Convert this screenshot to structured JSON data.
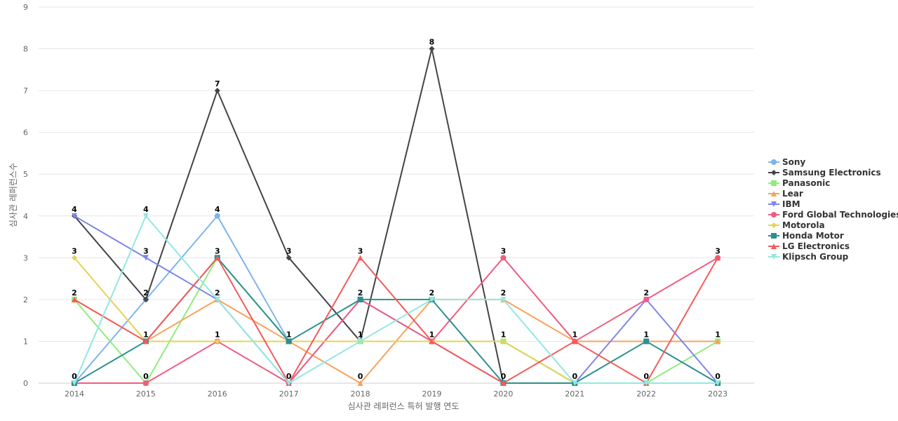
{
  "chart_data": {
    "type": "line",
    "xlabel": "심사관 레퍼런스 특허 발행 연도",
    "ylabel": "심사관 레퍼런스수",
    "ylim": [
      0,
      9
    ],
    "yticks": [
      0,
      1,
      2,
      3,
      4,
      5,
      6,
      7,
      8,
      9
    ],
    "grid": "horizontal",
    "legend_position": "right",
    "categories": [
      "2014",
      "2015",
      "2016",
      "2017",
      "2018",
      "2019",
      "2020",
      "2021",
      "2022",
      "2023"
    ],
    "series": [
      {
        "name": "Sony",
        "color": "#7cb5ec",
        "marker": "circle",
        "values": [
          0,
          2,
          4,
          1,
          1,
          1,
          1,
          0,
          0,
          0
        ]
      },
      {
        "name": "Samsung Electronics",
        "color": "#434348",
        "marker": "diamond",
        "values": [
          4,
          2,
          7,
          3,
          1,
          8,
          0,
          0,
          0,
          0
        ]
      },
      {
        "name": "Panasonic",
        "color": "#90ed7d",
        "marker": "square",
        "values": [
          2,
          0,
          3,
          1,
          1,
          1,
          1,
          0,
          0,
          1
        ]
      },
      {
        "name": "Lear",
        "color": "#f7a35c",
        "marker": "triangle",
        "values": [
          2,
          1,
          2,
          1,
          0,
          2,
          2,
          1,
          1,
          1
        ]
      },
      {
        "name": "IBM",
        "color": "#8085e9",
        "marker": "triangle-down",
        "values": [
          4,
          3,
          2,
          0,
          2,
          1,
          0,
          0,
          2,
          0
        ]
      },
      {
        "name": "Ford Global Technologies",
        "color": "#f15c80",
        "marker": "circle",
        "values": [
          0,
          0,
          1,
          0,
          2,
          1,
          3,
          1,
          2,
          3
        ]
      },
      {
        "name": "Motorola",
        "color": "#e4d354",
        "marker": "diamond",
        "values": [
          3,
          1,
          1,
          1,
          1,
          1,
          1,
          0,
          0,
          0
        ]
      },
      {
        "name": "Honda Motor",
        "color": "#2b908f",
        "marker": "square",
        "values": [
          0,
          1,
          3,
          1,
          2,
          2,
          0,
          0,
          1,
          0
        ]
      },
      {
        "name": "LG Electronics",
        "color": "#f45b5b",
        "marker": "triangle",
        "values": [
          2,
          1,
          3,
          0,
          3,
          1,
          0,
          1,
          0,
          3
        ]
      },
      {
        "name": "Klipsch Group",
        "color": "#91e8e1",
        "marker": "triangle-down",
        "values": [
          0,
          4,
          2,
          0,
          1,
          2,
          2,
          0,
          0,
          0
        ]
      }
    ],
    "data_labels": [
      {
        "category": "2014",
        "values": [
          4,
          3,
          2,
          0
        ]
      },
      {
        "category": "2015",
        "values": [
          4,
          3,
          2,
          1,
          0
        ]
      },
      {
        "category": "2016",
        "values": [
          7,
          4,
          3,
          2,
          1
        ]
      },
      {
        "category": "2017",
        "values": [
          3,
          1,
          0
        ]
      },
      {
        "category": "2018",
        "values": [
          3,
          2,
          1,
          0
        ]
      },
      {
        "category": "2019",
        "values": [
          8,
          2,
          1
        ]
      },
      {
        "category": "2020",
        "values": [
          3,
          2,
          1,
          0
        ]
      },
      {
        "category": "2021",
        "values": [
          1,
          0
        ]
      },
      {
        "category": "2022",
        "values": [
          2,
          1,
          0
        ]
      },
      {
        "category": "2023",
        "values": [
          3,
          1,
          0
        ]
      }
    ]
  }
}
